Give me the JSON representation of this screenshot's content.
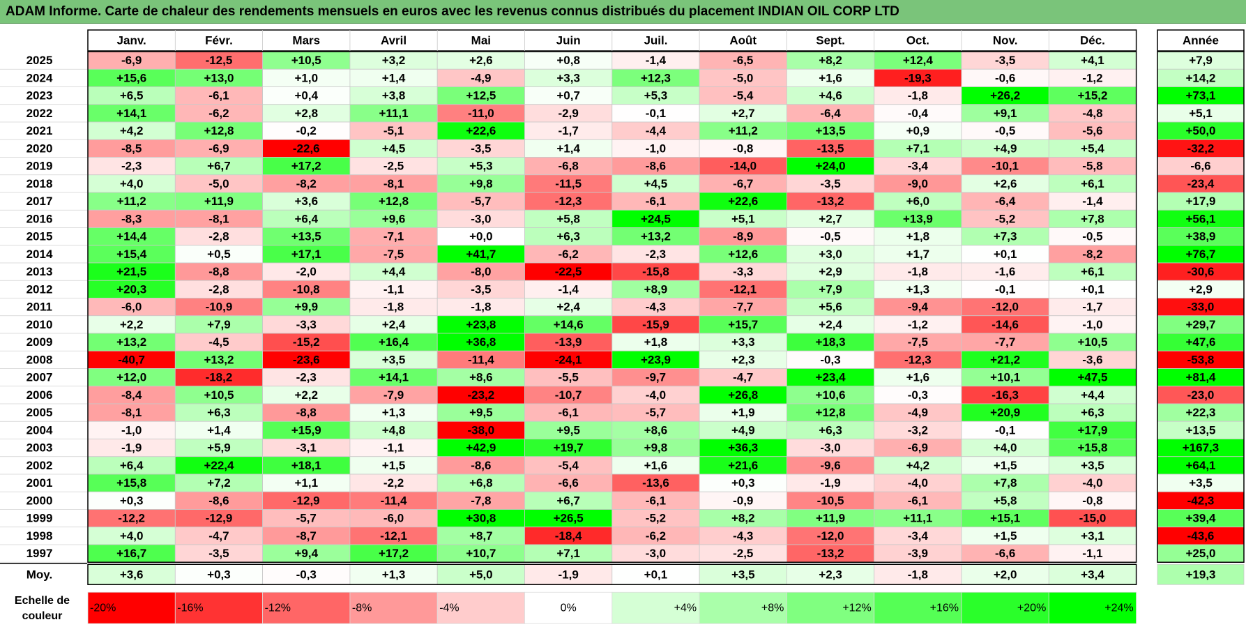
{
  "title": "ADAM Informe. Carte de chaleur des rendements mensuels en euros avec les revenus connus distribués du placement INDIAN OIL CORP LTD",
  "colors": {
    "title_bg": "#7ac47a",
    "neutral": "#ffffff",
    "negative_max": "#ff0000",
    "positive_max": "#00ff00"
  },
  "chart_data": {
    "type": "heatmap",
    "title": "ADAM Informe. Carte de chaleur des rendements mensuels en euros avec les revenus connus distribués du placement INDIAN OIL CORP LTD",
    "months": [
      "Janv.",
      "Févr.",
      "Mars",
      "Avril",
      "Mai",
      "Juin",
      "Juil.",
      "Août",
      "Sept.",
      "Oct.",
      "Nov.",
      "Déc."
    ],
    "year_header": "Année",
    "rows": [
      {
        "year": "2025",
        "values": [
          "-6,9",
          "-12,5",
          "+10,5",
          "+3,2",
          "+2,6",
          "+0,8",
          "-1,4",
          "-6,5",
          "+8,2",
          "+12,4",
          "-3,5",
          "+4,1"
        ],
        "annual": "+7,9"
      },
      {
        "year": "2024",
        "values": [
          "+15,6",
          "+13,0",
          "+1,0",
          "+1,4",
          "-4,9",
          "+3,3",
          "+12,3",
          "-5,0",
          "+1,6",
          "-19,3",
          "-0,6",
          "-1,2"
        ],
        "annual": "+14,2"
      },
      {
        "year": "2023",
        "values": [
          "+6,5",
          "-6,1",
          "+0,4",
          "+3,8",
          "+12,5",
          "+0,7",
          "+5,3",
          "-5,4",
          "+4,6",
          "-1,8",
          "+26,2",
          "+15,2"
        ],
        "annual": "+73,1"
      },
      {
        "year": "2022",
        "values": [
          "+14,1",
          "-6,2",
          "+2,8",
          "+11,1",
          "-11,0",
          "-2,9",
          "-0,1",
          "+2,7",
          "-6,4",
          "-0,4",
          "+9,1",
          "-4,8"
        ],
        "annual": "+5,1"
      },
      {
        "year": "2021",
        "values": [
          "+4,2",
          "+12,8",
          "-0,2",
          "-5,1",
          "+22,6",
          "-1,7",
          "-4,4",
          "+11,2",
          "+13,5",
          "+0,9",
          "-0,5",
          "-5,6"
        ],
        "annual": "+50,0"
      },
      {
        "year": "2020",
        "values": [
          "-8,5",
          "-6,9",
          "-22,6",
          "+4,5",
          "-3,5",
          "+1,4",
          "-1,0",
          "-0,8",
          "-13,5",
          "+7,1",
          "+4,9",
          "+5,4"
        ],
        "annual": "-32,2"
      },
      {
        "year": "2019",
        "values": [
          "-2,3",
          "+6,7",
          "+17,2",
          "-2,5",
          "+5,3",
          "-6,8",
          "-8,6",
          "-14,0",
          "+24,0",
          "-3,4",
          "-10,1",
          "-5,8"
        ],
        "annual": "-6,6"
      },
      {
        "year": "2018",
        "values": [
          "+4,0",
          "-5,0",
          "-8,2",
          "-8,1",
          "+9,8",
          "-11,5",
          "+4,5",
          "-6,7",
          "-3,5",
          "-9,0",
          "+2,6",
          "+6,1"
        ],
        "annual": "-23,4"
      },
      {
        "year": "2017",
        "values": [
          "+11,2",
          "+11,9",
          "+3,6",
          "+12,8",
          "-5,7",
          "-12,3",
          "-6,1",
          "+22,6",
          "-13,2",
          "+6,0",
          "-6,4",
          "-1,4"
        ],
        "annual": "+17,9"
      },
      {
        "year": "2016",
        "values": [
          "-8,3",
          "-8,1",
          "+6,4",
          "+9,6",
          "-3,0",
          "+5,8",
          "+24,5",
          "+5,1",
          "+2,7",
          "+13,9",
          "-5,2",
          "+7,8"
        ],
        "annual": "+56,1"
      },
      {
        "year": "2015",
        "values": [
          "+14,4",
          "-2,8",
          "+13,5",
          "-7,1",
          "+0,0",
          "+6,3",
          "+13,2",
          "-8,9",
          "-0,5",
          "+1,8",
          "+7,3",
          "-0,5"
        ],
        "annual": "+38,9"
      },
      {
        "year": "2014",
        "values": [
          "+15,4",
          "+0,5",
          "+17,1",
          "-7,5",
          "+41,7",
          "-6,2",
          "-2,3",
          "+12,6",
          "+3,0",
          "+1,7",
          "+0,1",
          "-8,2"
        ],
        "annual": "+76,7"
      },
      {
        "year": "2013",
        "values": [
          "+21,5",
          "-8,8",
          "-2,0",
          "+4,4",
          "-8,0",
          "-22,5",
          "-15,8",
          "-3,3",
          "+2,9",
          "-1,8",
          "-1,6",
          "+6,1"
        ],
        "annual": "-30,6"
      },
      {
        "year": "2012",
        "values": [
          "+20,3",
          "-2,8",
          "-10,8",
          "-1,1",
          "-3,5",
          "-1,4",
          "+8,9",
          "-12,1",
          "+7,9",
          "+1,3",
          "-0,1",
          "+0,1"
        ],
        "annual": "+2,9"
      },
      {
        "year": "2011",
        "values": [
          "-6,0",
          "-10,9",
          "+9,9",
          "-1,8",
          "-1,8",
          "+2,4",
          "-4,3",
          "-7,7",
          "+5,6",
          "-9,4",
          "-12,0",
          "-1,7"
        ],
        "annual": "-33,0"
      },
      {
        "year": "2010",
        "values": [
          "+2,2",
          "+7,9",
          "-3,3",
          "+2,4",
          "+23,8",
          "+14,6",
          "-15,9",
          "+15,7",
          "+2,4",
          "-1,2",
          "-14,6",
          "-1,0"
        ],
        "annual": "+29,7"
      },
      {
        "year": "2009",
        "values": [
          "+13,2",
          "-4,5",
          "-15,2",
          "+16,4",
          "+36,8",
          "-13,9",
          "+1,8",
          "+3,3",
          "+18,3",
          "-7,5",
          "-7,7",
          "+10,5"
        ],
        "annual": "+47,6"
      },
      {
        "year": "2008",
        "values": [
          "-40,7",
          "+13,2",
          "-23,6",
          "+3,5",
          "-11,4",
          "-24,1",
          "+23,9",
          "+2,3",
          "-0,3",
          "-12,3",
          "+21,2",
          "-3,6"
        ],
        "annual": "-53,8"
      },
      {
        "year": "2007",
        "values": [
          "+12,0",
          "-18,2",
          "-2,3",
          "+14,1",
          "+8,6",
          "-5,5",
          "-9,7",
          "-4,7",
          "+23,4",
          "+1,6",
          "+10,1",
          "+47,5"
        ],
        "annual": "+81,4"
      },
      {
        "year": "2006",
        "values": [
          "-8,4",
          "+10,5",
          "+2,2",
          "-7,9",
          "-23,2",
          "-10,7",
          "-4,0",
          "+26,8",
          "+10,6",
          "-0,3",
          "-16,3",
          "+4,4"
        ],
        "annual": "-23,0"
      },
      {
        "year": "2005",
        "values": [
          "-8,1",
          "+6,3",
          "-8,8",
          "+1,3",
          "+9,5",
          "-6,1",
          "-5,7",
          "+1,9",
          "+12,8",
          "-4,9",
          "+20,9",
          "+6,3"
        ],
        "annual": "+22,3"
      },
      {
        "year": "2004",
        "values": [
          "-1,0",
          "+1,4",
          "+15,9",
          "+4,8",
          "-38,0",
          "+9,5",
          "+8,6",
          "+4,9",
          "+6,3",
          "-3,2",
          "-0,1",
          "+17,9"
        ],
        "annual": "+13,5"
      },
      {
        "year": "2003",
        "values": [
          "-1,9",
          "+5,9",
          "-3,1",
          "-1,1",
          "+42,9",
          "+19,7",
          "+9,8",
          "+36,3",
          "-3,0",
          "-6,9",
          "+4,0",
          "+15,8"
        ],
        "annual": "+167,3"
      },
      {
        "year": "2002",
        "values": [
          "+6,4",
          "+22,4",
          "+18,1",
          "+1,5",
          "-8,6",
          "-5,4",
          "+1,6",
          "+21,6",
          "-9,6",
          "+4,2",
          "+1,5",
          "+3,5"
        ],
        "annual": "+64,1"
      },
      {
        "year": "2001",
        "values": [
          "+15,8",
          "+7,2",
          "+1,1",
          "-2,2",
          "+6,8",
          "-6,6",
          "-13,6",
          "+0,3",
          "-1,9",
          "-4,0",
          "+7,8",
          "-4,0"
        ],
        "annual": "+3,5"
      },
      {
        "year": "2000",
        "values": [
          "+0,3",
          "-8,6",
          "-12,9",
          "-11,4",
          "-7,8",
          "+6,7",
          "-6,1",
          "-0,9",
          "-10,5",
          "-6,1",
          "+5,8",
          "-0,8"
        ],
        "annual": "-42,3"
      },
      {
        "year": "1999",
        "values": [
          "-12,2",
          "-12,9",
          "-5,7",
          "-6,0",
          "+30,8",
          "+26,5",
          "-5,2",
          "+8,2",
          "+11,9",
          "+11,1",
          "+15,1",
          "-15,0"
        ],
        "annual": "+39,4"
      },
      {
        "year": "1998",
        "values": [
          "+4,0",
          "-4,7",
          "-8,7",
          "-12,1",
          "+8,7",
          "-18,4",
          "-6,2",
          "-4,3",
          "-12,0",
          "-3,4",
          "+1,5",
          "+3,1"
        ],
        "annual": "-43,6"
      },
      {
        "year": "1997",
        "values": [
          "+16,7",
          "-3,5",
          "+9,4",
          "+17,2",
          "+10,7",
          "+7,1",
          "-3,0",
          "-2,5",
          "-13,2",
          "-3,9",
          "-6,6",
          "-1,1"
        ],
        "annual": "+25,0"
      }
    ],
    "average": {
      "label": "Moy.",
      "values": [
        "+3,6",
        "+0,3",
        "-0,3",
        "+1,3",
        "+5,0",
        "-1,9",
        "+0,1",
        "+3,5",
        "+2,3",
        "-1,8",
        "+2,0",
        "+3,4"
      ],
      "annual": "+19,3"
    },
    "scale": {
      "label_line1": "Echelle de",
      "label_line2": "couleur",
      "steps": [
        "-20%",
        "-16%",
        "-12%",
        "-8%",
        "-4%",
        "0%",
        "+4%",
        "+8%",
        "+12%",
        "+16%",
        "+20%",
        "+24%"
      ]
    }
  }
}
